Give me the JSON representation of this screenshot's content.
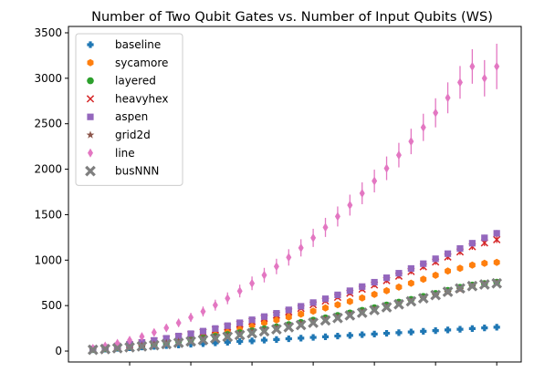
{
  "chart_data": {
    "type": "scatter",
    "title": "Number of Two Qubit Gates vs. Number of Input Qubits (WS)",
    "xlabel": "",
    "ylabel": "",
    "x": [
      4,
      6,
      8,
      10,
      12,
      14,
      16,
      18,
      20,
      22,
      24,
      26,
      28,
      30,
      32,
      34,
      36,
      38,
      40,
      42,
      44,
      46,
      48,
      50,
      52,
      54,
      56,
      58,
      60,
      62,
      64,
      66,
      68,
      70
    ],
    "xlim": [
      0,
      74
    ],
    "ylim": [
      -120,
      3570
    ],
    "yticks": [
      0,
      500,
      1000,
      1500,
      2000,
      2500,
      3000,
      3500
    ],
    "grid": false,
    "legend_position": "upper-left",
    "series": [
      {
        "name": "baseline",
        "marker": "plus",
        "color": "#1f77b4",
        "values": [
          15,
          22,
          30,
          37,
          45,
          52,
          60,
          67,
          75,
          82,
          90,
          97,
          105,
          112,
          120,
          127,
          135,
          142,
          150,
          157,
          165,
          172,
          180,
          187,
          195,
          202,
          210,
          217,
          225,
          232,
          240,
          247,
          255,
          262
        ],
        "errors": [
          0,
          0,
          0,
          0,
          0,
          0,
          0,
          0,
          0,
          0,
          0,
          0,
          0,
          0,
          0,
          0,
          0,
          0,
          0,
          0,
          0,
          0,
          0,
          0,
          0,
          0,
          0,
          0,
          0,
          0,
          0,
          0,
          0,
          0
        ]
      },
      {
        "name": "sycamore",
        "marker": "hexagon",
        "color": "#ff7f0e",
        "values": [
          20,
          33,
          47,
          62,
          78,
          96,
          115,
          135,
          157,
          180,
          204,
          229,
          256,
          284,
          313,
          343,
          374,
          406,
          439,
          474,
          509,
          546,
          584,
          623,
          663,
          704,
          746,
          790,
          834,
          880,
          910,
          945,
          965,
          975
        ],
        "errors": [
          3,
          4,
          5,
          6,
          7,
          8,
          9,
          10,
          11,
          12,
          13,
          14,
          15,
          16,
          17,
          18,
          19,
          20,
          21,
          22,
          23,
          24,
          25,
          26,
          27,
          28,
          29,
          30,
          31,
          32,
          33,
          34,
          35,
          36
        ]
      },
      {
        "name": "layered",
        "marker": "circle",
        "color": "#2ca02c",
        "values": [
          17,
          27,
          39,
          51,
          64,
          78,
          93,
          109,
          126,
          143,
          162,
          181,
          201,
          222,
          244,
          266,
          290,
          314,
          339,
          365,
          391,
          419,
          447,
          476,
          506,
          537,
          568,
          600,
          633,
          667,
          701,
          725,
          742,
          757
        ],
        "errors": [
          2,
          3,
          3,
          4,
          4,
          5,
          5,
          6,
          6,
          7,
          7,
          8,
          8,
          9,
          9,
          10,
          10,
          11,
          11,
          12,
          12,
          13,
          13,
          14,
          14,
          15,
          15,
          16,
          16,
          17,
          17,
          18,
          18,
          19
        ]
      },
      {
        "name": "heavyhex",
        "marker": "x",
        "color": "#d62728",
        "values": [
          22,
          37,
          53,
          71,
          90,
          111,
          133,
          156,
          181,
          207,
          235,
          264,
          295,
          327,
          361,
          396,
          432,
          470,
          509,
          550,
          592,
          636,
          681,
          727,
          775,
          824,
          875,
          927,
          980,
          1035,
          1091,
          1148,
          1190,
          1225
        ],
        "errors": [
          3,
          4,
          5,
          6,
          7,
          8,
          9,
          10,
          11,
          12,
          13,
          14,
          15,
          16,
          17,
          18,
          19,
          20,
          21,
          22,
          23,
          24,
          25,
          26,
          27,
          28,
          29,
          30,
          31,
          32,
          33,
          34,
          35,
          36
        ]
      },
      {
        "name": "aspen",
        "marker": "square",
        "color": "#9467bd",
        "values": [
          24,
          39,
          56,
          75,
          95,
          117,
          140,
          165,
          191,
          219,
          248,
          279,
          311,
          344,
          379,
          415,
          453,
          492,
          533,
          575,
          618,
          663,
          709,
          757,
          806,
          856,
          908,
          961,
          1015,
          1071,
          1128,
          1186,
          1245,
          1295
        ],
        "errors": [
          3,
          4,
          5,
          6,
          7,
          8,
          9,
          10,
          11,
          12,
          13,
          14,
          15,
          16,
          17,
          18,
          19,
          20,
          21,
          22,
          23,
          24,
          25,
          26,
          27,
          28,
          29,
          30,
          31,
          32,
          33,
          34,
          35,
          36
        ]
      },
      {
        "name": "grid2d",
        "marker": "star",
        "color": "#8c564b",
        "values": [
          16,
          26,
          37,
          48,
          61,
          74,
          89,
          104,
          120,
          137,
          155,
          173,
          193,
          213,
          234,
          256,
          278,
          302,
          326,
          351,
          377,
          403,
          431,
          459,
          488,
          518,
          548,
          579,
          611,
          644,
          677,
          711,
          735,
          750
        ],
        "errors": [
          2,
          3,
          3,
          4,
          4,
          5,
          5,
          6,
          6,
          7,
          7,
          8,
          8,
          9,
          9,
          10,
          10,
          11,
          11,
          12,
          12,
          13,
          13,
          14,
          14,
          15,
          15,
          16,
          16,
          17,
          17,
          18,
          18,
          19
        ]
      },
      {
        "name": "line",
        "marker": "thin-diamond",
        "color": "#e377c2",
        "values": [
          30,
          55,
          85,
          120,
          160,
          205,
          255,
          310,
          370,
          435,
          505,
          580,
          660,
          745,
          835,
          930,
          1030,
          1135,
          1245,
          1360,
          1480,
          1605,
          1735,
          1870,
          2010,
          2155,
          2305,
          2460,
          2620,
          2785,
          2955,
          3130,
          3000,
          3130
        ],
        "errors": [
          10,
          15,
          20,
          25,
          30,
          35,
          40,
          45,
          50,
          55,
          60,
          65,
          70,
          75,
          80,
          85,
          90,
          95,
          100,
          105,
          110,
          115,
          120,
          125,
          130,
          135,
          140,
          150,
          160,
          170,
          180,
          190,
          200,
          250
        ]
      },
      {
        "name": "busNNN",
        "marker": "x-filled",
        "color": "#7f7f7f",
        "values": [
          14,
          22,
          31,
          41,
          52,
          64,
          77,
          91,
          106,
          122,
          139,
          157,
          176,
          196,
          217,
          239,
          262,
          286,
          311,
          337,
          364,
          392,
          421,
          451,
          482,
          514,
          547,
          581,
          616,
          652,
          689,
          715,
          732,
          745
        ],
        "errors": [
          2,
          3,
          3,
          4,
          4,
          5,
          5,
          6,
          6,
          7,
          7,
          8,
          8,
          9,
          9,
          10,
          10,
          11,
          11,
          12,
          12,
          13,
          13,
          14,
          14,
          15,
          15,
          16,
          16,
          17,
          17,
          18,
          18,
          19
        ]
      }
    ]
  }
}
